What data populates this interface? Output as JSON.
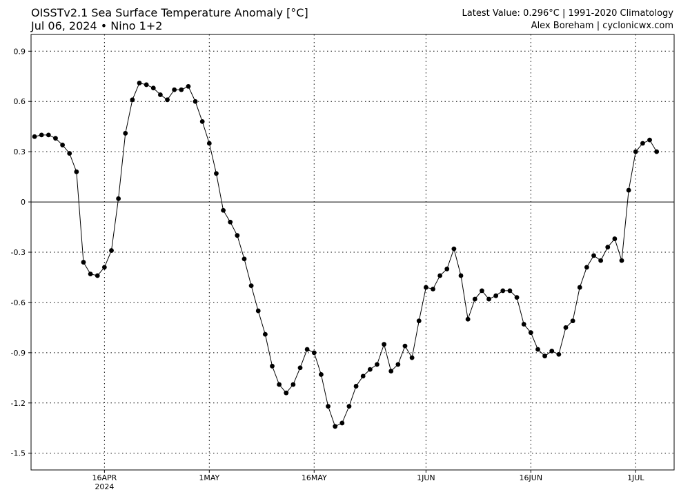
{
  "header": {
    "title": "OISSTv2.1 Sea Surface Temperature Anomaly [°C]",
    "subtitle": "Jul 06, 2024  •  Nino 1+2",
    "latest": "Latest Value: 0.296°C | 1991-2020 Climatology",
    "credit": "Alex Boreham | cyclonicwx.com"
  },
  "chart_data": {
    "type": "line",
    "title": "OISSTv2.1 Sea Surface Temperature Anomaly [°C]",
    "xlabel": "",
    "ylabel": "",
    "x_start": "2024-04-06",
    "x_end": "2024-07-06",
    "ylim": [
      -1.6,
      1.0
    ],
    "grid": true,
    "yticks": [
      0.9,
      0.6,
      0.3,
      0,
      -0.3,
      -0.6,
      -0.9,
      -1.2,
      -1.5
    ],
    "ytick_labels": [
      "0.9",
      "0.6",
      "0.3",
      "0",
      "-0.3",
      "-0.6",
      "-0.9",
      "-1.2",
      "-1.5"
    ],
    "xticks": [
      {
        "date": "2024-04-16",
        "label": "16APR",
        "sublabel": "2024"
      },
      {
        "date": "2024-05-01",
        "label": "1MAY",
        "sublabel": ""
      },
      {
        "date": "2024-05-16",
        "label": "16MAY",
        "sublabel": ""
      },
      {
        "date": "2024-06-01",
        "label": "1JUN",
        "sublabel": ""
      },
      {
        "date": "2024-06-16",
        "label": "16JUN",
        "sublabel": ""
      },
      {
        "date": "2024-07-01",
        "label": "1JUL",
        "sublabel": ""
      }
    ],
    "series": [
      {
        "values": [
          0.39,
          0.4,
          0.4,
          0.38,
          0.34,
          0.29,
          0.18,
          -0.36,
          -0.43,
          -0.44,
          -0.39,
          -0.29,
          0.02,
          0.41,
          0.61,
          0.71,
          0.7,
          0.68,
          0.64,
          0.61,
          0.67,
          0.67,
          0.69,
          0.6,
          0.48,
          0.35,
          0.17,
          -0.05,
          -0.12,
          -0.2,
          -0.34,
          -0.5,
          -0.65,
          -0.79,
          -0.98,
          -1.09,
          -1.14,
          -1.09,
          -0.99,
          -0.88,
          -0.9,
          -1.03,
          -1.22,
          -1.34,
          -1.32,
          -1.22,
          -1.1,
          -1.04,
          -1.0,
          -0.97,
          -0.85,
          -1.01,
          -0.97,
          -0.86,
          -0.93,
          -0.71,
          -0.51,
          -0.52,
          -0.44,
          -0.4,
          -0.28,
          -0.44,
          -0.7,
          -0.58,
          -0.53,
          -0.58,
          -0.56,
          -0.53,
          -0.53,
          -0.57,
          -0.73,
          -0.78,
          -0.88,
          -0.92,
          -0.89,
          -0.91,
          -0.75,
          -0.71,
          -0.51,
          -0.39,
          -0.32,
          -0.35,
          -0.27,
          -0.22,
          -0.35,
          0.07,
          0.3,
          0.35,
          0.37,
          0.3
        ]
      }
    ]
  }
}
